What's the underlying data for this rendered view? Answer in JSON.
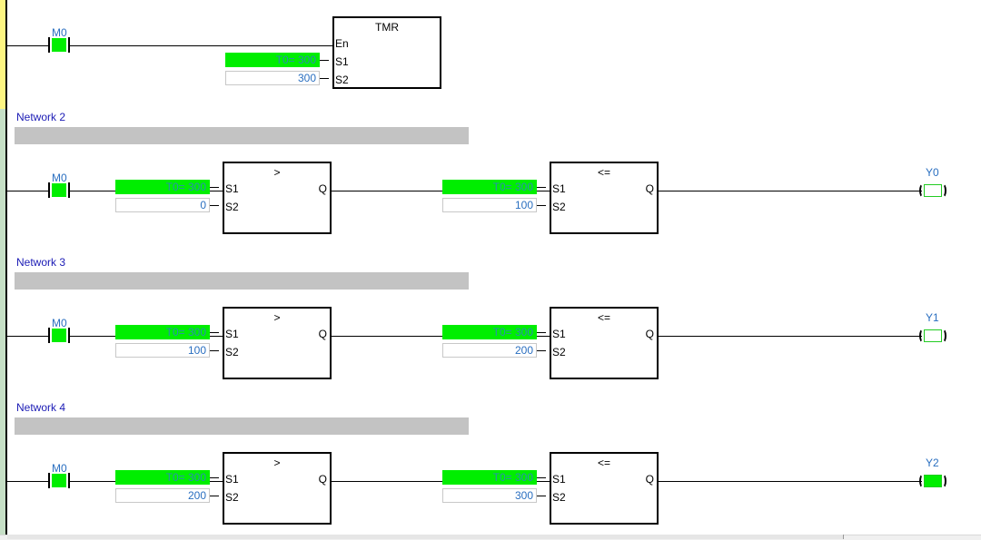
{
  "colors": {
    "energized": "#00ee00",
    "network_label": "#1b1bb5",
    "operand_text": "#2a6fc0",
    "network_bar": "#c3c3c3"
  },
  "network1": {
    "contact": {
      "label": "M0",
      "energized": true
    },
    "timer": {
      "title": "TMR",
      "pins": [
        "En",
        "S1",
        "S2"
      ],
      "s1_value": "T0= 300",
      "s2_value": "300"
    }
  },
  "networks": [
    {
      "label": "Network 2",
      "contact": {
        "label": "M0",
        "energized": true
      },
      "compare1": {
        "op": ">",
        "s1_value": "T0= 300",
        "s2_value": "0"
      },
      "compare2": {
        "op": "<=",
        "s1_value": "T0= 300",
        "s2_value": "100"
      },
      "coil": {
        "label": "Y0",
        "energized": false
      }
    },
    {
      "label": "Network 3",
      "contact": {
        "label": "M0",
        "energized": true
      },
      "compare1": {
        "op": ">",
        "s1_value": "T0= 300",
        "s2_value": "100"
      },
      "compare2": {
        "op": "<=",
        "s1_value": "T0= 300",
        "s2_value": "200"
      },
      "coil": {
        "label": "Y1",
        "energized": false
      }
    },
    {
      "label": "Network 4",
      "contact": {
        "label": "M0",
        "energized": true
      },
      "compare1": {
        "op": ">",
        "s1_value": "T0= 300",
        "s2_value": "200"
      },
      "compare2": {
        "op": "<=",
        "s1_value": "T0= 300",
        "s2_value": "300"
      },
      "coil": {
        "label": "Y2",
        "energized": true
      }
    }
  ],
  "pin_labels": {
    "s1": "S1",
    "s2": "S2",
    "q": "Q"
  }
}
